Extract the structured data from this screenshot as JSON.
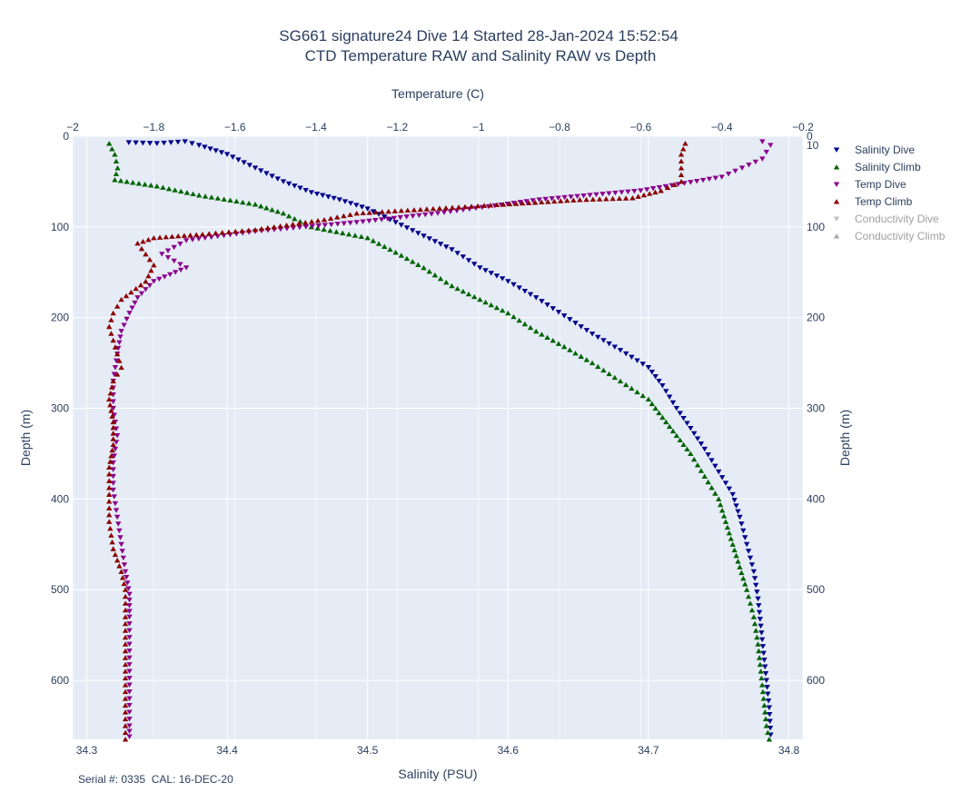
{
  "chart_data": {
    "type": "scatter",
    "title": "SG661 signature24 Dive 14 Started 28-Jan-2024 15:52:54",
    "subtitle": "CTD Temperature RAW and Salinity RAW vs Depth",
    "xlabel_bottom": "Salinity (PSU)",
    "xlabel_top": "Temperature (C)",
    "ylabel_left": "Depth (m)",
    "ylabel_right": "Depth (m)",
    "salinity_range": [
      34.29,
      34.81
    ],
    "temperature_range": [
      -2.0,
      -0.2
    ],
    "depth_range": [
      0,
      665
    ],
    "depth_reversed": true,
    "salinity_ticks": [
      34.3,
      34.4,
      34.5,
      34.6,
      34.7,
      34.8
    ],
    "temperature_ticks": [
      -2,
      -1.8,
      -1.6,
      -1.4,
      -1.2,
      -1,
      -0.8,
      -0.6,
      -0.4,
      -0.2
    ],
    "depth_ticks": [
      0,
      100,
      200,
      300,
      400,
      500,
      600
    ],
    "right_depth_ticks": [
      0,
      10,
      100,
      200,
      300,
      400,
      500,
      600
    ],
    "grid": true,
    "legend_position": "right",
    "series": [
      {
        "name": "Salinity Dive",
        "axis": "salinity",
        "marker": "triangle-down",
        "color": "#00008b",
        "visible": true,
        "points": [
          [
            34.33,
            7
          ],
          [
            34.35,
            8
          ],
          [
            34.37,
            6
          ],
          [
            34.38,
            10
          ],
          [
            34.4,
            20
          ],
          [
            34.42,
            35
          ],
          [
            34.44,
            50
          ],
          [
            34.46,
            62
          ],
          [
            34.48,
            70
          ],
          [
            34.5,
            80
          ],
          [
            34.52,
            95
          ],
          [
            34.54,
            110
          ],
          [
            34.56,
            125
          ],
          [
            34.58,
            145
          ],
          [
            34.6,
            160
          ],
          [
            34.62,
            178
          ],
          [
            34.64,
            198
          ],
          [
            34.66,
            218
          ],
          [
            34.68,
            236
          ],
          [
            34.7,
            255
          ],
          [
            34.71,
            275
          ],
          [
            34.72,
            300
          ],
          [
            34.73,
            322
          ],
          [
            34.74,
            345
          ],
          [
            34.75,
            370
          ],
          [
            34.76,
            395
          ],
          [
            34.765,
            420
          ],
          [
            34.77,
            450
          ],
          [
            34.775,
            480
          ],
          [
            34.778,
            510
          ],
          [
            34.78,
            540
          ],
          [
            34.782,
            570
          ],
          [
            34.784,
            600
          ],
          [
            34.786,
            630
          ],
          [
            34.787,
            660
          ]
        ]
      },
      {
        "name": "Salinity Climb",
        "axis": "salinity",
        "marker": "triangle-up",
        "color": "#006400",
        "visible": true,
        "points": [
          [
            34.316,
            8
          ],
          [
            34.32,
            20
          ],
          [
            34.322,
            35
          ],
          [
            34.32,
            48
          ],
          [
            34.35,
            55
          ],
          [
            34.38,
            65
          ],
          [
            34.42,
            75
          ],
          [
            34.44,
            85
          ],
          [
            34.46,
            100
          ],
          [
            34.5,
            112
          ],
          [
            34.52,
            128
          ],
          [
            34.54,
            145
          ],
          [
            34.56,
            165
          ],
          [
            34.58,
            180
          ],
          [
            34.6,
            195
          ],
          [
            34.62,
            215
          ],
          [
            34.64,
            232
          ],
          [
            34.66,
            250
          ],
          [
            34.68,
            270
          ],
          [
            34.7,
            290
          ],
          [
            34.71,
            310
          ],
          [
            34.72,
            330
          ],
          [
            34.73,
            350
          ],
          [
            34.74,
            375
          ],
          [
            34.75,
            400
          ],
          [
            34.755,
            425
          ],
          [
            34.76,
            450
          ],
          [
            34.765,
            475
          ],
          [
            34.77,
            500
          ],
          [
            34.775,
            530
          ],
          [
            34.778,
            560
          ],
          [
            34.78,
            590
          ],
          [
            34.782,
            620
          ],
          [
            34.784,
            650
          ],
          [
            34.786,
            665
          ]
        ]
      },
      {
        "name": "Temp Dive",
        "axis": "temperature",
        "marker": "triangle-down",
        "color": "#8b008b",
        "visible": true,
        "points": [
          [
            -0.3,
            6
          ],
          [
            -0.28,
            10
          ],
          [
            -0.3,
            25
          ],
          [
            -0.35,
            35
          ],
          [
            -0.4,
            45
          ],
          [
            -0.6,
            60
          ],
          [
            -0.85,
            70
          ],
          [
            -1.1,
            85
          ],
          [
            -1.3,
            95
          ],
          [
            -1.55,
            105
          ],
          [
            -1.72,
            115
          ],
          [
            -1.78,
            130
          ],
          [
            -1.72,
            145
          ],
          [
            -1.8,
            160
          ],
          [
            -1.84,
            178
          ],
          [
            -1.86,
            195
          ],
          [
            -1.88,
            215
          ],
          [
            -1.89,
            240
          ],
          [
            -1.9,
            270
          ],
          [
            -1.9,
            300
          ],
          [
            -1.89,
            330
          ],
          [
            -1.9,
            360
          ],
          [
            -1.9,
            390
          ],
          [
            -1.89,
            420
          ],
          [
            -1.88,
            450
          ],
          [
            -1.87,
            480
          ],
          [
            -1.86,
            505
          ],
          [
            -1.86,
            530
          ],
          [
            -1.86,
            560
          ],
          [
            -1.86,
            590
          ],
          [
            -1.86,
            620
          ],
          [
            -1.86,
            650
          ],
          [
            -1.86,
            662
          ]
        ]
      },
      {
        "name": "Temp Climb",
        "axis": "temperature",
        "marker": "triangle-up",
        "color": "#8b0000",
        "visible": true,
        "points": [
          [
            -0.49,
            8
          ],
          [
            -0.5,
            20
          ],
          [
            -0.5,
            35
          ],
          [
            -0.5,
            50
          ],
          [
            -0.55,
            60
          ],
          [
            -0.62,
            68
          ],
          [
            -0.75,
            70
          ],
          [
            -1.3,
            85
          ],
          [
            -1.38,
            92
          ],
          [
            -1.55,
            103
          ],
          [
            -1.68,
            108
          ],
          [
            -1.8,
            112
          ],
          [
            -1.84,
            118
          ],
          [
            -1.82,
            130
          ],
          [
            -1.8,
            142
          ],
          [
            -1.82,
            160
          ],
          [
            -1.88,
            180
          ],
          [
            -1.9,
            195
          ],
          [
            -1.91,
            210
          ],
          [
            -1.9,
            225
          ],
          [
            -1.89,
            240
          ],
          [
            -1.88,
            255
          ],
          [
            -1.9,
            270
          ],
          [
            -1.91,
            290
          ],
          [
            -1.9,
            315
          ],
          [
            -1.9,
            340
          ],
          [
            -1.91,
            365
          ],
          [
            -1.91,
            395
          ],
          [
            -1.91,
            425
          ],
          [
            -1.9,
            455
          ],
          [
            -1.88,
            480
          ],
          [
            -1.87,
            500
          ],
          [
            -1.87,
            530
          ],
          [
            -1.87,
            560
          ],
          [
            -1.87,
            590
          ],
          [
            -1.87,
            620
          ],
          [
            -1.87,
            650
          ],
          [
            -1.87,
            665
          ]
        ]
      },
      {
        "name": "Conductivity Dive",
        "axis": "none",
        "marker": "triangle-down",
        "color": "#c0c0c0",
        "visible": false,
        "points": []
      },
      {
        "name": "Conductivity Climb",
        "axis": "none",
        "marker": "triangle-up",
        "color": "#a9a9a9",
        "visible": false,
        "points": []
      }
    ]
  },
  "footer": {
    "serial": "Serial #: 0335",
    "cal": "CAL: 16-DEC-20"
  },
  "colors": {
    "plot_background": "#e5ecf6",
    "grid": "#ffffff",
    "text": "#2a3f5f",
    "legend_hidden_text": "#a0a0a0"
  }
}
